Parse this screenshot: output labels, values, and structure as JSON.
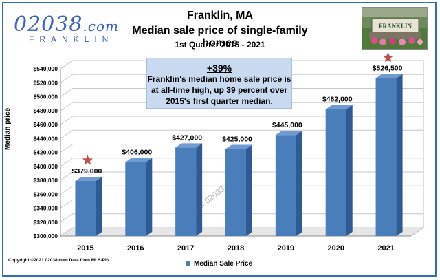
{
  "header": {
    "logo_main": "02038",
    "logo_dotcom": ".com",
    "logo_sub": "FRANKLIN",
    "title_line1": "Franklin, MA",
    "title_line2": "Median sale price of single-family homes",
    "title_line3": "1st Quarter  2015 - 2021",
    "photo_sign_text": "FRANKLIN"
  },
  "callout": {
    "headline": "+39%",
    "body": "Franklin's median home sale price is at all-time high, up 39 percent over 2015's first quarter median."
  },
  "footer": {
    "copyright": "Copyright ©2021  02038.com Data from MLS-PIN."
  },
  "watermark": "© 02038.com",
  "colors": {
    "bar_front": "#4a7ebb",
    "bar_side": "#2f5a94",
    "bar_top": "#6f9ad2",
    "star": "#c0504d",
    "frame": "#2e6fb6"
  },
  "icons": {
    "star_marker": "star-icon"
  },
  "chart_data": {
    "type": "bar",
    "title": "Median sale price of single-family homes",
    "subtitle": "1st Quarter  2015 - 2021",
    "ylabel": "Median price",
    "xlabel": "",
    "categories": [
      "2015",
      "2016",
      "2017",
      "2018",
      "2019",
      "2020",
      "2021"
    ],
    "series": [
      {
        "name": "Median Sale Price",
        "values": [
          379000,
          406000,
          427000,
          425000,
          445000,
          482000,
          526500
        ]
      }
    ],
    "data_labels": [
      "$379,000",
      "$406,000",
      "$427,000",
      "$425,000",
      "$445,000",
      "$482,000",
      "$526,500"
    ],
    "ylim": [
      300000,
      540000
    ],
    "yticks": [
      300000,
      320000,
      340000,
      360000,
      380000,
      400000,
      420000,
      440000,
      460000,
      480000,
      500000,
      520000,
      540000
    ],
    "ytick_labels": [
      "$300,000",
      "$320,000",
      "$340,000",
      "$360,000",
      "$380,000",
      "$400,000",
      "$420,000",
      "$440,000",
      "$460,000",
      "$480,000",
      "$500,000",
      "$520,000",
      "$540,000"
    ],
    "starred_categories": [
      "2015",
      "2021"
    ],
    "grid": true,
    "legend_position": "bottom",
    "style": "3d-column"
  }
}
